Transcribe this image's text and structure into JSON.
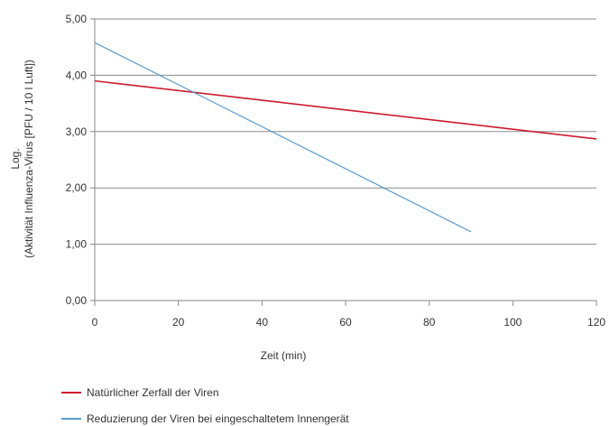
{
  "chart_data": {
    "type": "line",
    "title": "",
    "xlabel": "Zeit (min)",
    "ylabel_lines": [
      "Log.",
      "(Aktivität Influenza-Virus [PFU / 10 l Luft])"
    ],
    "xlim": [
      0,
      120
    ],
    "ylim": [
      0,
      5
    ],
    "x_ticks": [
      0,
      20,
      40,
      60,
      80,
      100,
      120
    ],
    "y_ticks": [
      0,
      1,
      2,
      3,
      4,
      5
    ],
    "x_tick_labels": [
      "0",
      "20",
      "40",
      "60",
      "80",
      "100",
      "120"
    ],
    "y_tick_labels": [
      "0,00",
      "1,00",
      "2,00",
      "3,00",
      "4,00",
      "5,00"
    ],
    "grid": "horizontal",
    "legend_position": "bottom-left",
    "series": [
      {
        "name": "Natürlicher Zerfall der Viren",
        "color": "#cc1a2e",
        "x": [
          0,
          120
        ],
        "y": [
          3.9,
          2.87
        ]
      },
      {
        "name": "Reduzierung der Viren bei eingeschaltetem Innengerät",
        "color": "#5b9bd0",
        "x": [
          0,
          90
        ],
        "y": [
          4.58,
          1.22
        ]
      }
    ]
  }
}
